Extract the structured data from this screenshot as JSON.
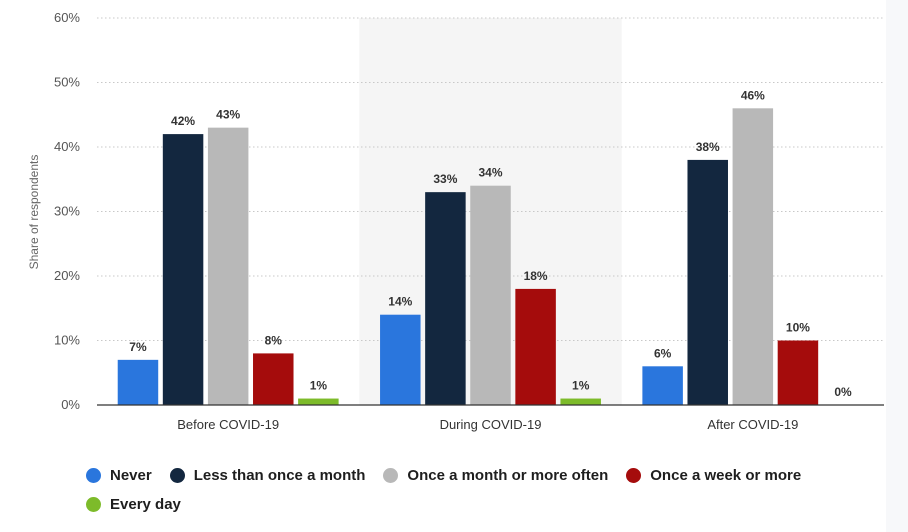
{
  "chart_data": {
    "type": "bar",
    "categories": [
      "Before COVID-19",
      "During COVID-19",
      "After COVID-19"
    ],
    "series": [
      {
        "name": "Never",
        "color": "#2a76dd",
        "values": [
          7,
          14,
          6
        ]
      },
      {
        "name": "Less than once a month",
        "color": "#13273f",
        "values": [
          42,
          33,
          38
        ]
      },
      {
        "name": "Once a month or more often",
        "color": "#b8b8b8",
        "values": [
          43,
          34,
          46
        ]
      },
      {
        "name": "Once a week or more",
        "color": "#a50c0c",
        "values": [
          8,
          18,
          10
        ]
      },
      {
        "name": "Every day",
        "color": "#7dbb2a",
        "values": [
          1,
          1,
          0
        ]
      }
    ],
    "data_labels": [
      [
        "7%",
        "14%",
        "6%"
      ],
      [
        "42%",
        "33%",
        "38%"
      ],
      [
        "43%",
        "34%",
        "46%"
      ],
      [
        "8%",
        "18%",
        "10%"
      ],
      [
        "1%",
        "1%",
        "0%"
      ]
    ],
    "yticks": [
      0,
      10,
      20,
      30,
      40,
      50,
      60
    ],
    "ytick_labels": [
      "0%",
      "10%",
      "20%",
      "30%",
      "40%",
      "50%",
      "60%"
    ],
    "ylim": [
      0,
      60
    ],
    "ylabel": "Share of respondents",
    "xlabel": "",
    "highlighted_category": "During COVID-19",
    "grid": true,
    "legend_position": "bottom-left"
  }
}
